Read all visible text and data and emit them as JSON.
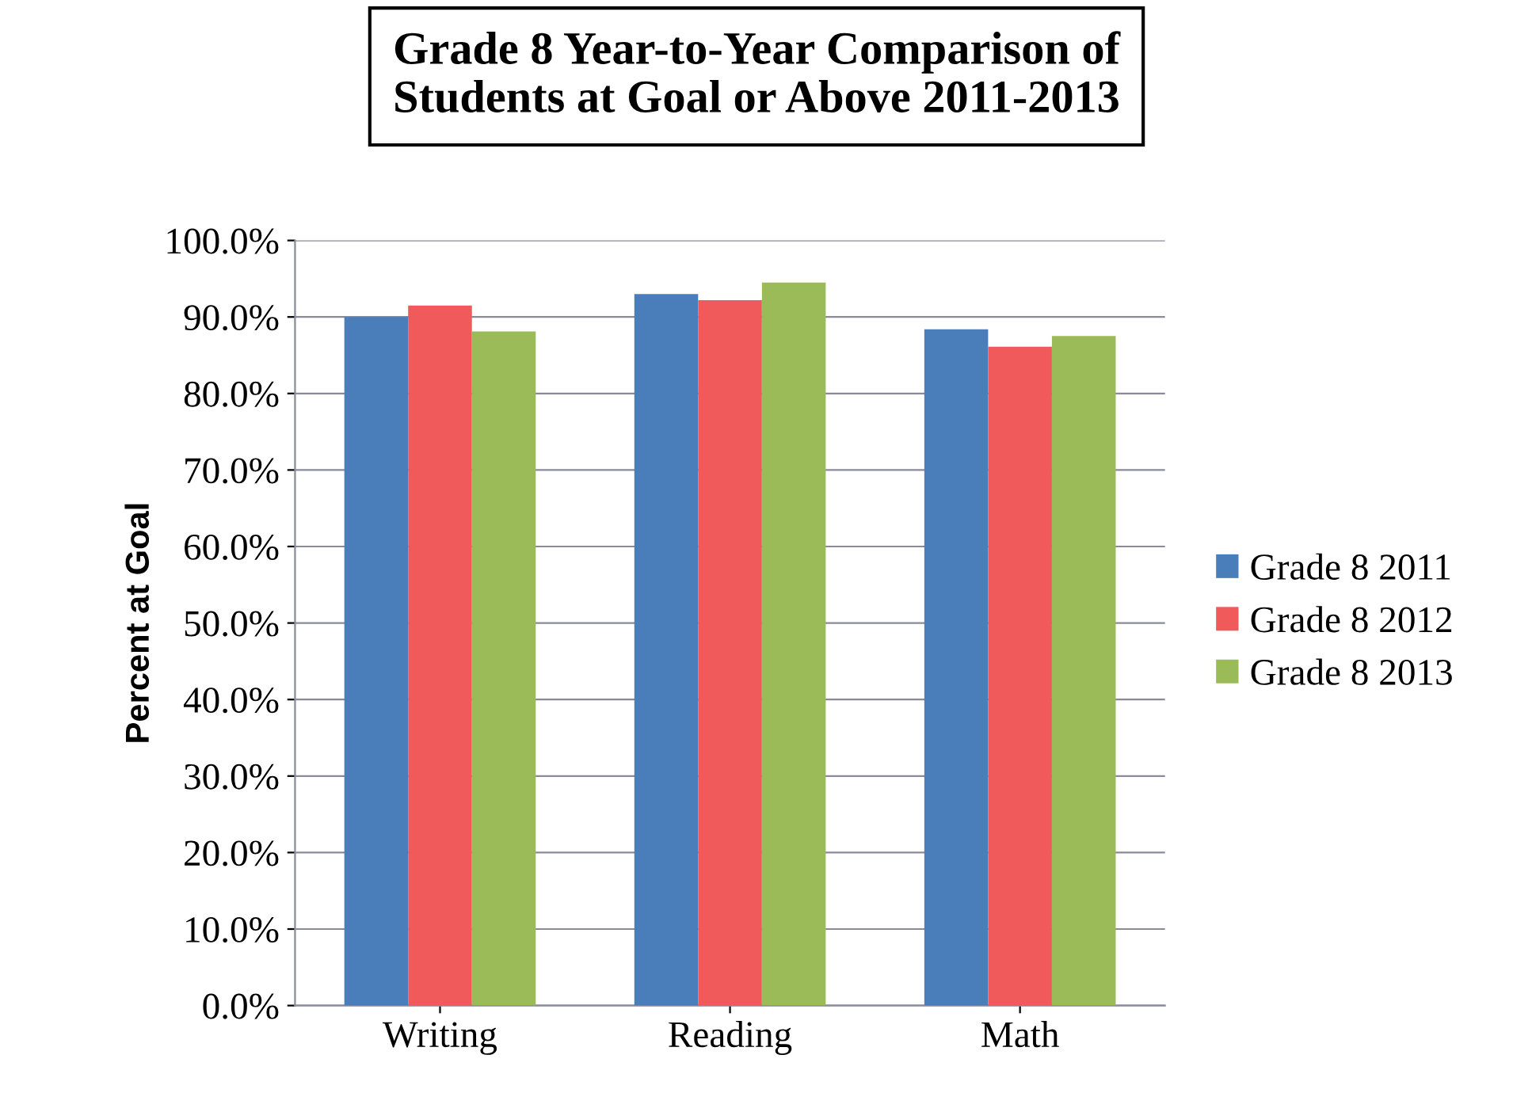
{
  "chart_data": {
    "type": "bar",
    "title": "Grade 8 Year-to-Year Comparison of\nStudents at Goal or Above 2011-2013",
    "ylabel": "Percent at Goal",
    "categories": [
      "Writing",
      "Reading",
      "Math"
    ],
    "series": [
      {
        "name": "Grade 8 2011",
        "color": "#4a7ebb",
        "values": [
          90.0,
          93.0,
          88.4
        ]
      },
      {
        "name": "Grade 8 2012",
        "color": "#f05a5a",
        "values": [
          91.5,
          92.2,
          86.1
        ]
      },
      {
        "name": "Grade 8 2013",
        "color": "#9bbb59",
        "values": [
          88.1,
          94.5,
          87.5
        ]
      }
    ],
    "ylim": [
      0,
      100
    ],
    "yticks": [
      {
        "value": 0,
        "label": "0.0%"
      },
      {
        "value": 10,
        "label": "10.0%"
      },
      {
        "value": 20,
        "label": "20.0%"
      },
      {
        "value": 30,
        "label": "30.0%"
      },
      {
        "value": 40,
        "label": "40.0%"
      },
      {
        "value": 50,
        "label": "50.0%"
      },
      {
        "value": 60,
        "label": "60.0%"
      },
      {
        "value": 70,
        "label": "70.0%"
      },
      {
        "value": 80,
        "label": "80.0%"
      },
      {
        "value": 90,
        "label": "90.0%"
      },
      {
        "value": 100,
        "label": "100.0%"
      }
    ],
    "grid": "y",
    "legend": "right"
  }
}
